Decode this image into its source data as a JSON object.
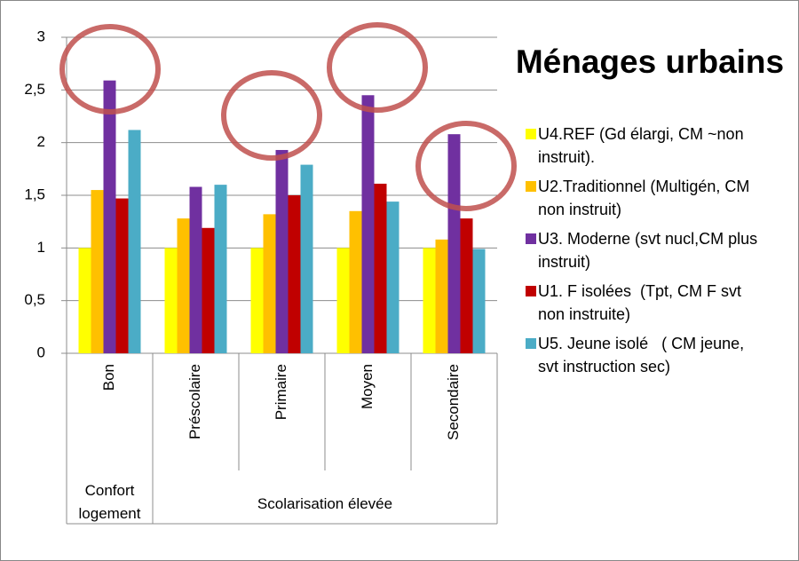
{
  "chart_data": {
    "type": "bar",
    "title": "Ménages urbains",
    "categories": [
      "Bon",
      "Préscolaire",
      "Primaire",
      "Moyen",
      "Secondaire"
    ],
    "groups": [
      {
        "name": "Confort logement",
        "count": 1
      },
      {
        "name": "Scolarisation élevée",
        "count": 4
      }
    ],
    "series": [
      {
        "name": "U4.REF (Gd élargi, CM ~non instruit).",
        "color": "#ffff00",
        "values": [
          1,
          1,
          1,
          1,
          1
        ]
      },
      {
        "name": "U2.Traditionnel (Multigén, CM non instruit)",
        "color": "#ffc000",
        "values": [
          1.55,
          1.28,
          1.32,
          1.35,
          1.08
        ]
      },
      {
        "name": "U3. Moderne (svt nucl,CM plus instruit)",
        "color": "#7030a0",
        "values": [
          2.59,
          1.58,
          1.93,
          2.45,
          2.08
        ]
      },
      {
        "name": "U1. F isolées  (Tpt, CM F svt non instruite)",
        "color": "#c00000",
        "values": [
          1.47,
          1.19,
          1.5,
          1.61,
          1.28
        ]
      },
      {
        "name": "U5. Jeune isolé   ( CM jeune, svt instruction sec)",
        "color": "#4bacc6",
        "values": [
          2.12,
          1.6,
          1.79,
          1.44,
          0.99
        ]
      }
    ],
    "ylim": [
      0,
      3
    ],
    "yticks": [
      0,
      {
        "value": 0.5,
        "label": "0,5"
      },
      1,
      {
        "value": 1.5,
        "label": "1,5"
      },
      2,
      {
        "value": 2.5,
        "label": "2,5"
      },
      3
    ],
    "grid": true,
    "legend": "right"
  }
}
